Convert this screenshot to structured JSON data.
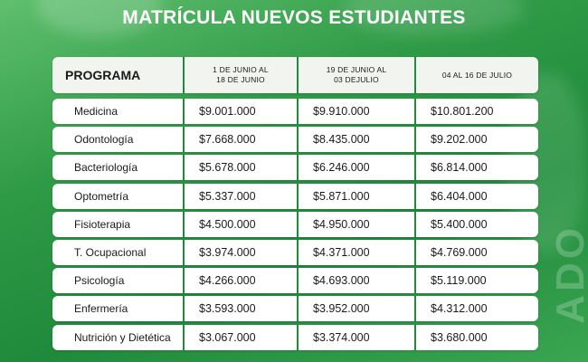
{
  "title": "MATRÍCULA NUEVOS ESTUDIANTES",
  "side_text": "ADO",
  "table": {
    "headers": [
      "PROGRAMA",
      "1 DE JUNIO AL 18 DE JUNIO",
      "19 DE JUNIO AL 03 DEJULIO",
      "04 AL 16 DE JULIO"
    ],
    "header_lines": {
      "col1": [
        "1 DE JUNIO AL",
        "18 DE JUNIO"
      ],
      "col2": [
        "19 DE JUNIO AL",
        "03 DEJULIO"
      ],
      "col3": [
        "04 AL 16 DE JULIO"
      ]
    },
    "rows": [
      {
        "program": "Medicina",
        "p1": "$9.001.000",
        "p2": "$9.910.000",
        "p3": "$10.801.200"
      },
      {
        "program": "Odontología",
        "p1": "$7.668.000",
        "p2": "$8.435.000",
        "p3": "$9.202.000"
      },
      {
        "program": "Bacteriología",
        "p1": "$5.678.000",
        "p2": "$6.246.000",
        "p3": "$6.814.000"
      },
      {
        "program": "Optometría",
        "p1": "$5.337.000",
        "p2": "$5.871.000",
        "p3": "$6.404.000"
      },
      {
        "program": "Fisioterapia",
        "p1": "$4.500.000",
        "p2": "$4.950.000",
        "p3": "$5.400.000"
      },
      {
        "program": "T. Ocupacional",
        "p1": "$3.974.000",
        "p2": "$4.371.000",
        "p3": "$4.769.000"
      },
      {
        "program": "Psicología",
        "p1": "$4.266.000",
        "p2": "$4.693.000",
        "p3": "$5.119.000"
      },
      {
        "program": "Enfermería",
        "p1": "$3.593.000",
        "p2": "$3.952.000",
        "p3": "$4.312.000"
      },
      {
        "program": "Nutrición y Dietética",
        "p1": "$3.067.000",
        "p2": "$3.374.000",
        "p3": "$3.680.000"
      }
    ]
  },
  "colors": {
    "background": "#2e9a46",
    "divider": "#1f8a3b",
    "row_bg": "#ffffff",
    "text": "#1a1a1a"
  }
}
